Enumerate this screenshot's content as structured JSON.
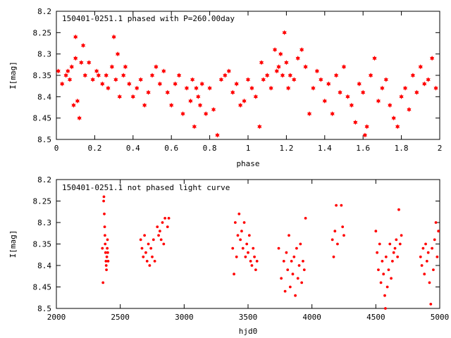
{
  "colors": {
    "points": "#ff0000",
    "axis": "#000000",
    "background": "#ffffff"
  },
  "chart_data": [
    {
      "type": "scatter",
      "title": "150401-0251.1 phased with P=260.00day",
      "xlabel": "phase",
      "ylabel": "I[mag]",
      "xlim": [
        0,
        2
      ],
      "ylim": [
        8.5,
        8.2
      ],
      "y_inverted": true,
      "grid": false,
      "marker": "filled-star",
      "xticks": [
        "0",
        "0.2",
        "0.4",
        "0.6",
        "0.8",
        "1",
        "1.2",
        "1.4",
        "1.6",
        "1.8",
        "2"
      ],
      "yticks": [
        "8.2",
        "8.25",
        "8.3",
        "8.35",
        "8.4",
        "8.45",
        "8.5"
      ],
      "series": [
        {
          "x": [
            0.01,
            0.03,
            0.05,
            0.06,
            0.07,
            0.08,
            0.09,
            0.1,
            0.1,
            0.11,
            0.12,
            0.13,
            0.14,
            0.15,
            0.17,
            0.19,
            0.21,
            0.22,
            0.24,
            0.26,
            0.27,
            0.29,
            0.3,
            0.31,
            0.32,
            0.33,
            0.35,
            0.36,
            0.38,
            0.4,
            0.42,
            0.44,
            0.46,
            0.48,
            0.5,
            0.52,
            0.54,
            0.56,
            0.58,
            0.6,
            0.62,
            0.64,
            0.66,
            0.68,
            0.7,
            0.71,
            0.72,
            0.73,
            0.74,
            0.75,
            0.76,
            0.78,
            0.8,
            0.82,
            0.84,
            0.86,
            0.88,
            0.9,
            0.92,
            0.94,
            0.96,
            0.98,
            1.0,
            1.02,
            1.04,
            1.06,
            1.07,
            1.08,
            1.1,
            1.12,
            1.14,
            1.15,
            1.16,
            1.17,
            1.18,
            1.19,
            1.2,
            1.21,
            1.22,
            1.24,
            1.26,
            1.28,
            1.3,
            1.32,
            1.34,
            1.36,
            1.38,
            1.4,
            1.42,
            1.44,
            1.46,
            1.48,
            1.5,
            1.52,
            1.54,
            1.56,
            1.58,
            1.6,
            1.61,
            1.62,
            1.64,
            1.66,
            1.68,
            1.7,
            1.72,
            1.74,
            1.76,
            1.78,
            1.8,
            1.82,
            1.84,
            1.86,
            1.88,
            1.9,
            1.92,
            1.94,
            1.96,
            1.98
          ],
          "y": [
            8.34,
            8.37,
            8.35,
            8.34,
            8.36,
            8.33,
            8.42,
            8.31,
            8.26,
            8.41,
            8.45,
            8.32,
            8.28,
            8.35,
            8.32,
            8.36,
            8.34,
            8.35,
            8.37,
            8.35,
            8.38,
            8.33,
            8.26,
            8.36,
            8.3,
            8.4,
            8.35,
            8.33,
            8.37,
            8.4,
            8.38,
            8.36,
            8.42,
            8.39,
            8.35,
            8.33,
            8.37,
            8.34,
            8.39,
            8.42,
            8.37,
            8.35,
            8.44,
            8.38,
            8.41,
            8.36,
            8.47,
            8.38,
            8.4,
            8.42,
            8.37,
            8.44,
            8.38,
            8.43,
            8.49,
            8.36,
            8.35,
            8.34,
            8.39,
            8.37,
            8.42,
            8.41,
            8.36,
            8.38,
            8.4,
            8.47,
            8.32,
            8.36,
            8.35,
            8.38,
            8.29,
            8.34,
            8.33,
            8.3,
            8.35,
            8.25,
            8.32,
            8.38,
            8.35,
            8.36,
            8.31,
            8.29,
            8.33,
            8.44,
            8.38,
            8.34,
            8.36,
            8.41,
            8.37,
            8.44,
            8.35,
            8.39,
            8.33,
            8.4,
            8.42,
            8.46,
            8.37,
            8.39,
            8.49,
            8.47,
            8.35,
            8.31,
            8.41,
            8.38,
            8.36,
            8.42,
            8.45,
            8.47,
            8.4,
            8.38,
            8.43,
            8.35,
            8.39,
            8.33,
            8.37,
            8.36,
            8.31,
            8.38
          ]
        }
      ]
    },
    {
      "type": "scatter",
      "title": "150401-0251.1 not phased light curve",
      "xlabel": "hjd0",
      "ylabel": "I[mag]",
      "xlim": [
        2000,
        5000
      ],
      "ylim": [
        8.5,
        8.2
      ],
      "y_inverted": true,
      "grid": false,
      "marker": "small-dot",
      "xticks": [
        "2000",
        "2500",
        "3000",
        "3500",
        "4000",
        "4500",
        "5000"
      ],
      "yticks": [
        "8.2",
        "8.25",
        "8.3",
        "8.35",
        "8.4",
        "8.45",
        "8.5"
      ],
      "series": [
        {
          "x": [
            2360,
            2365,
            2370,
            2372,
            2375,
            2378,
            2380,
            2382,
            2385,
            2388,
            2390,
            2392,
            2395,
            2398,
            2400,
            2402,
            2405,
            2660,
            2670,
            2680,
            2690,
            2700,
            2710,
            2720,
            2730,
            2740,
            2750,
            2760,
            2770,
            2790,
            2800,
            2810,
            2820,
            2830,
            2840,
            2850,
            2870,
            2880,
            3380,
            3390,
            3400,
            3410,
            3420,
            3430,
            3440,
            3450,
            3460,
            3470,
            3480,
            3490,
            3500,
            3510,
            3520,
            3530,
            3540,
            3550,
            3560,
            3570,
            3740,
            3760,
            3780,
            3790,
            3800,
            3810,
            3820,
            3830,
            3840,
            3850,
            3860,
            3870,
            3880,
            3890,
            3900,
            3910,
            3920,
            3930,
            3940,
            3950,
            4160,
            4170,
            4180,
            4190,
            4200,
            4230,
            4240,
            4250,
            4500,
            4510,
            4520,
            4530,
            4540,
            4550,
            4560,
            4570,
            4575,
            4580,
            4590,
            4600,
            4610,
            4620,
            4630,
            4640,
            4650,
            4660,
            4670,
            4680,
            4690,
            4700,
            4850,
            4860,
            4870,
            4880,
            4890,
            4900,
            4910,
            4920,
            4930,
            4940,
            4950,
            4960,
            4970,
            4980,
            4990
          ],
          "y": [
            8.36,
            8.44,
            8.25,
            8.24,
            8.28,
            8.31,
            8.33,
            8.35,
            8.37,
            8.39,
            8.4,
            8.41,
            8.38,
            8.36,
            8.34,
            8.37,
            8.39,
            8.34,
            8.36,
            8.38,
            8.33,
            8.37,
            8.39,
            8.35,
            8.4,
            8.36,
            8.38,
            8.34,
            8.39,
            8.31,
            8.33,
            8.32,
            8.34,
            8.3,
            8.35,
            8.29,
            8.31,
            8.29,
            8.36,
            8.42,
            8.3,
            8.38,
            8.33,
            8.28,
            8.34,
            8.32,
            8.36,
            8.3,
            8.38,
            8.35,
            8.37,
            8.33,
            8.39,
            8.4,
            8.36,
            8.38,
            8.41,
            8.39,
            8.36,
            8.43,
            8.39,
            8.46,
            8.37,
            8.41,
            8.33,
            8.45,
            8.39,
            8.42,
            8.38,
            8.47,
            8.36,
            8.43,
            8.4,
            8.35,
            8.44,
            8.39,
            8.41,
            8.29,
            8.34,
            8.38,
            8.32,
            8.26,
            8.35,
            8.26,
            8.31,
            8.33,
            8.32,
            8.37,
            8.41,
            8.35,
            8.44,
            8.39,
            8.42,
            8.47,
            8.5,
            8.38,
            8.45,
            8.41,
            8.35,
            8.43,
            8.39,
            8.37,
            8.36,
            8.34,
            8.38,
            8.27,
            8.35,
            8.33,
            8.38,
            8.4,
            8.36,
            8.42,
            8.35,
            8.39,
            8.37,
            8.44,
            8.49,
            8.36,
            8.41,
            8.34,
            8.3,
            8.38,
            8.32
          ]
        }
      ]
    }
  ]
}
